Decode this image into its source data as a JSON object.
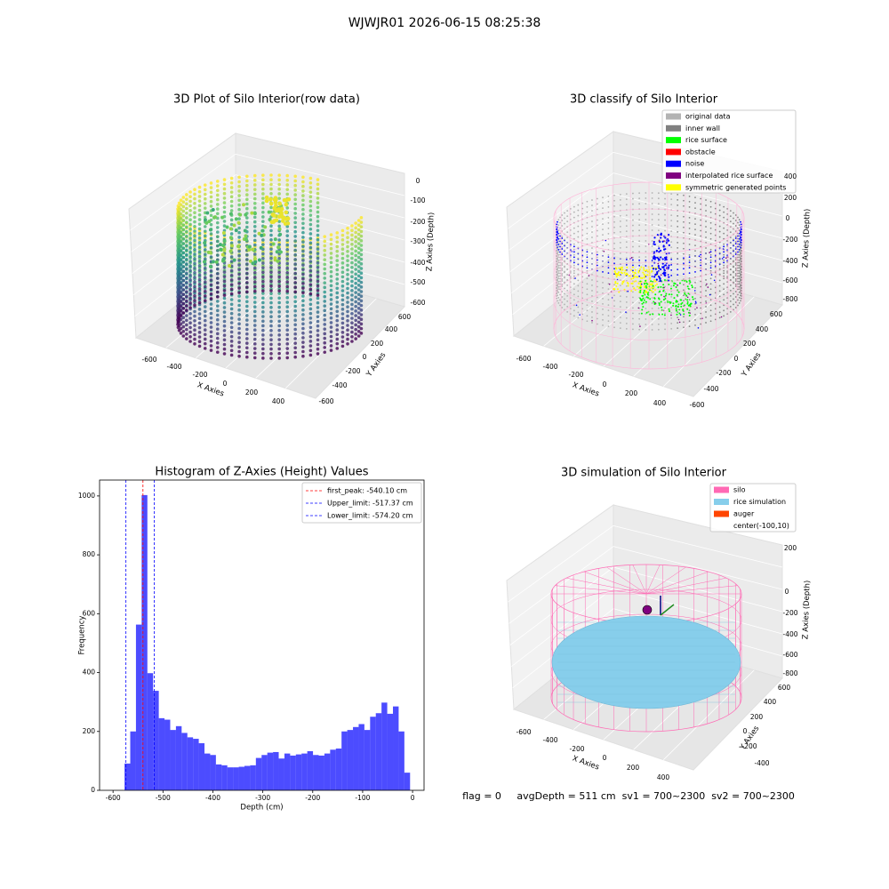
{
  "suptitle": "WJWJR01 2026-06-15 08:25:38",
  "chart_data": [
    {
      "type": "scatter3d",
      "title": "3D Plot of Silo Interior(row data)",
      "xlabel": "X Axies",
      "ylabel": "Y Axies",
      "zlabel": "Z Axies (Depth)",
      "xticks": [
        -600,
        -400,
        -200,
        0,
        200,
        400
      ],
      "yticks": [
        -600,
        -400,
        -200,
        0,
        200,
        400,
        600
      ],
      "zticks": [
        0,
        -100,
        -200,
        -300,
        -400,
        -500,
        -600
      ]
    },
    {
      "type": "scatter3d",
      "title": "3D classify of Silo Interior",
      "xlabel": "X Axies",
      "ylabel": "Y Axies",
      "zlabel": "Z Axies (Depth)",
      "xticks": [
        -600,
        -400,
        -200,
        0,
        200,
        400
      ],
      "yticks": [
        -600,
        -400,
        -200,
        0,
        200,
        400,
        600
      ],
      "zticks": [
        400,
        200,
        0,
        -200,
        -400,
        -600,
        -800
      ],
      "legend": [
        {
          "name": "original data",
          "color": "#b3b3b3"
        },
        {
          "name": "inner wall",
          "color": "#808080"
        },
        {
          "name": "rice surface",
          "color": "#00ff00"
        },
        {
          "name": "obstacle",
          "color": "#ff0000"
        },
        {
          "name": "noise",
          "color": "#0000ff"
        },
        {
          "name": "interpolated rice surface",
          "color": "#800080"
        },
        {
          "name": "symmetric generated points",
          "color": "#ffff00"
        }
      ]
    },
    {
      "type": "histogram",
      "title": "Histogram of Z-Axies (Height) Values",
      "xlabel": "Depth (cm)",
      "ylabel": "Frequency",
      "color": "#0000ff",
      "bins": [
        -577.0,
        -565.56,
        -554.12,
        -542.68,
        -531.24,
        -519.8,
        -508.36,
        -496.92,
        -485.48,
        -474.04,
        -462.6,
        -451.16,
        -439.72,
        -428.28,
        -416.84,
        -405.4,
        -393.96,
        -382.52,
        -371.08,
        -359.64,
        -348.2,
        -336.76,
        -325.32,
        -313.88,
        -302.44,
        -291.0,
        -279.56,
        -268.12,
        -256.68,
        -245.24,
        -233.8,
        -222.36,
        -210.92,
        -199.48,
        -188.04,
        -176.6,
        -165.16,
        -153.72,
        -142.28,
        -130.84,
        -119.4,
        -107.96,
        -96.52,
        -85.08,
        -73.64,
        -62.2,
        -50.76,
        -39.32,
        -27.88,
        -16.44,
        -5.0
      ],
      "values": [
        91,
        200,
        563,
        1003,
        398,
        338,
        245,
        240,
        205,
        218,
        195,
        180,
        175,
        160,
        125,
        120,
        88,
        85,
        78,
        78,
        80,
        83,
        85,
        110,
        120,
        128,
        130,
        108,
        125,
        118,
        122,
        125,
        133,
        120,
        118,
        125,
        138,
        142,
        200,
        205,
        215,
        225,
        205,
        250,
        262,
        298,
        260,
        285,
        200,
        60
      ],
      "xlim": [
        -627,
        23
      ],
      "ylim": [
        0,
        1054
      ],
      "xticks": [
        -600,
        -500,
        -400,
        -300,
        -200,
        -100,
        0
      ],
      "yticks": [
        0,
        200,
        400,
        600,
        800,
        1000
      ],
      "lines": [
        {
          "name": "first_peak: -540.10 cm",
          "value": -540.1,
          "color": "#ff0000"
        },
        {
          "name": "Upper_limit: -517.37 cm",
          "value": -517.37,
          "color": "#0000ff"
        },
        {
          "name": "Lower_limit: -574.20 cm",
          "value": -574.2,
          "color": "#0000ff"
        }
      ],
      "legend": "upper right"
    },
    {
      "type": "surface3d",
      "title": "3D simulation of Silo Interior",
      "xlabel": "X Axies",
      "ylabel": "Y Axies",
      "zlabel": "Z Axies (Depth)",
      "xticks": [
        -600,
        -400,
        -200,
        0,
        200,
        400
      ],
      "yticks": [
        -400,
        -200,
        0,
        200,
        400,
        600
      ],
      "zticks": [
        200,
        0,
        -200,
        -400,
        -600,
        -800
      ],
      "legend": [
        {
          "name": "silo",
          "color": "#ff69b4"
        },
        {
          "name": "rice simulation",
          "color": "#87ceeb"
        },
        {
          "name": "auger",
          "color": "#ff4500"
        },
        {
          "name": "center(-100,10)"
        }
      ]
    }
  ],
  "footer": "flag = 0     avgDepth = 511 cm  sv1 = 700~2300  sv2 = 700~2300"
}
